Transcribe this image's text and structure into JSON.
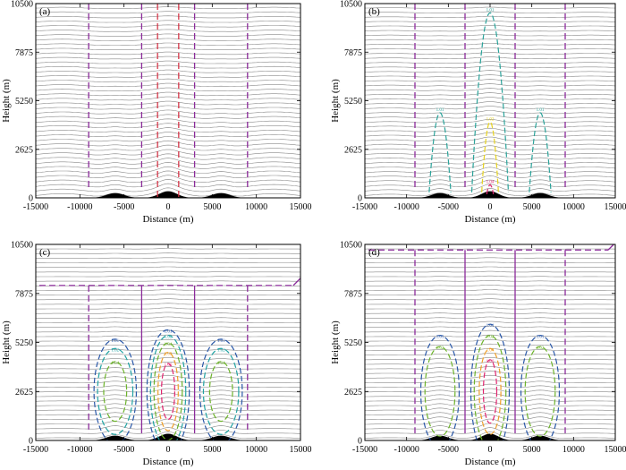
{
  "figure": {
    "panels": [
      {
        "label": "(a)"
      },
      {
        "label": "(b)"
      },
      {
        "label": "(c)"
      },
      {
        "label": "(d)"
      }
    ]
  },
  "chart_data": [
    {
      "type": "line",
      "panel": "(a)",
      "xlabel": "Distance  (m)",
      "ylabel": "Height  (m)",
      "xlim": [
        -15000,
        15000
      ],
      "ylim": [
        0,
        10500
      ],
      "xticks": [
        -15000,
        -10000,
        -5000,
        0,
        5000,
        10000,
        15000
      ],
      "yticks": [
        0,
        2625,
        5250,
        7875,
        10500
      ],
      "terrain_hill_centers": [
        -6000,
        0,
        6000
      ],
      "isentrope_count": 42,
      "vertical_dashed_lines": [
        -9000,
        -3000,
        3000,
        9000
      ],
      "red_dashed_lines": [
        -1200,
        1200
      ],
      "series": []
    },
    {
      "type": "line",
      "panel": "(b)",
      "xlabel": "Distance  (m)",
      "ylabel": "Height  (m)",
      "xlim": [
        -15000,
        15000
      ],
      "ylim": [
        0,
        10500
      ],
      "xticks": [
        -15000,
        -10000,
        -5000,
        0,
        5000,
        10000,
        15000
      ],
      "yticks": [
        0,
        2625,
        5250,
        7875,
        10500
      ],
      "terrain_hill_centers": [
        -6000,
        0,
        6000
      ],
      "isentrope_count": 42,
      "vertical_dashed_lines": [
        -9000,
        -3000,
        3000,
        9000
      ],
      "series": [
        {
          "name": "1.01",
          "color": "#2aa39a",
          "contours": [
            [
              -6000,
              2500,
              4600
            ],
            [
              0,
              2500,
              10000
            ],
            [
              6000,
              2500,
              4600
            ]
          ]
        },
        {
          "name": "1.02",
          "color": "#e6d21e",
          "contours": [
            [
              0,
              1000,
              4100
            ]
          ]
        },
        {
          "name": "1.04",
          "color": "#e0246e",
          "contours": [
            [
              0,
              450,
              700
            ]
          ]
        }
      ]
    },
    {
      "type": "line",
      "panel": "(c)",
      "xlabel": "Distance  (m)",
      "ylabel": "Height  (m)",
      "xlim": [
        -15000,
        15000
      ],
      "ylim": [
        0,
        10500
      ],
      "xticks": [
        -15000,
        -10000,
        -5000,
        0,
        5000,
        10000,
        15000
      ],
      "yticks": [
        0,
        2625,
        5250,
        7875,
        10500
      ],
      "terrain_hill_centers": [
        -6000,
        0,
        6000
      ],
      "isentrope_count": 42,
      "vertical_dashed_lines": [
        -9000,
        -3000,
        3000,
        9000
      ],
      "top_dashed_level": 8300,
      "contour_labels": [
        "1.01",
        "1.02",
        "1.02",
        "1.04",
        "1.06",
        "1.08",
        "1.05",
        "1.02",
        "1.01"
      ],
      "series": [
        {
          "name": "1.01",
          "color": "#2a58a8",
          "contours": [
            [
              -6000,
              2625,
              2400,
              2800
            ],
            [
              0,
              2625,
              2400,
              3300
            ],
            [
              6000,
              2625,
              2400,
              2800
            ]
          ]
        },
        {
          "name": "1.02",
          "color": "#21a3a3",
          "contours": [
            [
              -6000,
              2625,
              2000,
              2300
            ],
            [
              0,
              2625,
              2000,
              3000
            ],
            [
              6000,
              2625,
              2000,
              2300
            ]
          ]
        },
        {
          "name": "1.04",
          "color": "#6cb32a",
          "contours": [
            [
              -6000,
              2625,
              1300,
              1600
            ],
            [
              0,
              2625,
              1600,
              2600
            ],
            [
              6000,
              2625,
              1300,
              1600
            ]
          ]
        },
        {
          "name": "1.05",
          "color": "#efa02a",
          "contours": [
            [
              0,
              2625,
              1150,
              2100
            ]
          ]
        },
        {
          "name": "1.06",
          "color": "#e0246e",
          "contours": [
            [
              0,
              2625,
              750,
              1500
            ]
          ]
        }
      ]
    },
    {
      "type": "line",
      "panel": "(d)",
      "xlabel": "Distance  (m)",
      "ylabel": "Height  (m)",
      "xlim": [
        -15000,
        15000
      ],
      "ylim": [
        0,
        10500
      ],
      "xticks": [
        -15000,
        -10000,
        -5000,
        0,
        5000,
        10000,
        15000
      ],
      "yticks": [
        0,
        2625,
        5250,
        7875,
        10500
      ],
      "terrain_hill_centers": [
        -6000,
        0,
        6000
      ],
      "isentrope_count": 42,
      "vertical_dashed_lines": [
        -9000,
        -3000,
        3000,
        9000
      ],
      "top_dashed_level": 10200,
      "contour_labels": [
        "1.01",
        "1.02",
        "1.04",
        "1.06",
        "1.01"
      ],
      "series": [
        {
          "name": "1.01",
          "color": "#2a58a8",
          "contours": [
            [
              -6000,
              2625,
              2300,
              3000
            ],
            [
              0,
              2625,
              2300,
              3600
            ],
            [
              6000,
              2625,
              2300,
              3000
            ]
          ]
        },
        {
          "name": "1.02",
          "color": "#6cb32a",
          "contours": [
            [
              -6000,
              2625,
              1800,
              2400
            ],
            [
              0,
              2625,
              1900,
              3000
            ],
            [
              6000,
              2625,
              1800,
              2400
            ]
          ]
        },
        {
          "name": "1.04",
          "color": "#efa02a",
          "contours": [
            [
              0,
              2625,
              1300,
              2300
            ]
          ]
        },
        {
          "name": "1.06",
          "color": "#e0246e",
          "contours": [
            [
              0,
              2625,
              800,
              1700
            ]
          ]
        }
      ]
    }
  ]
}
